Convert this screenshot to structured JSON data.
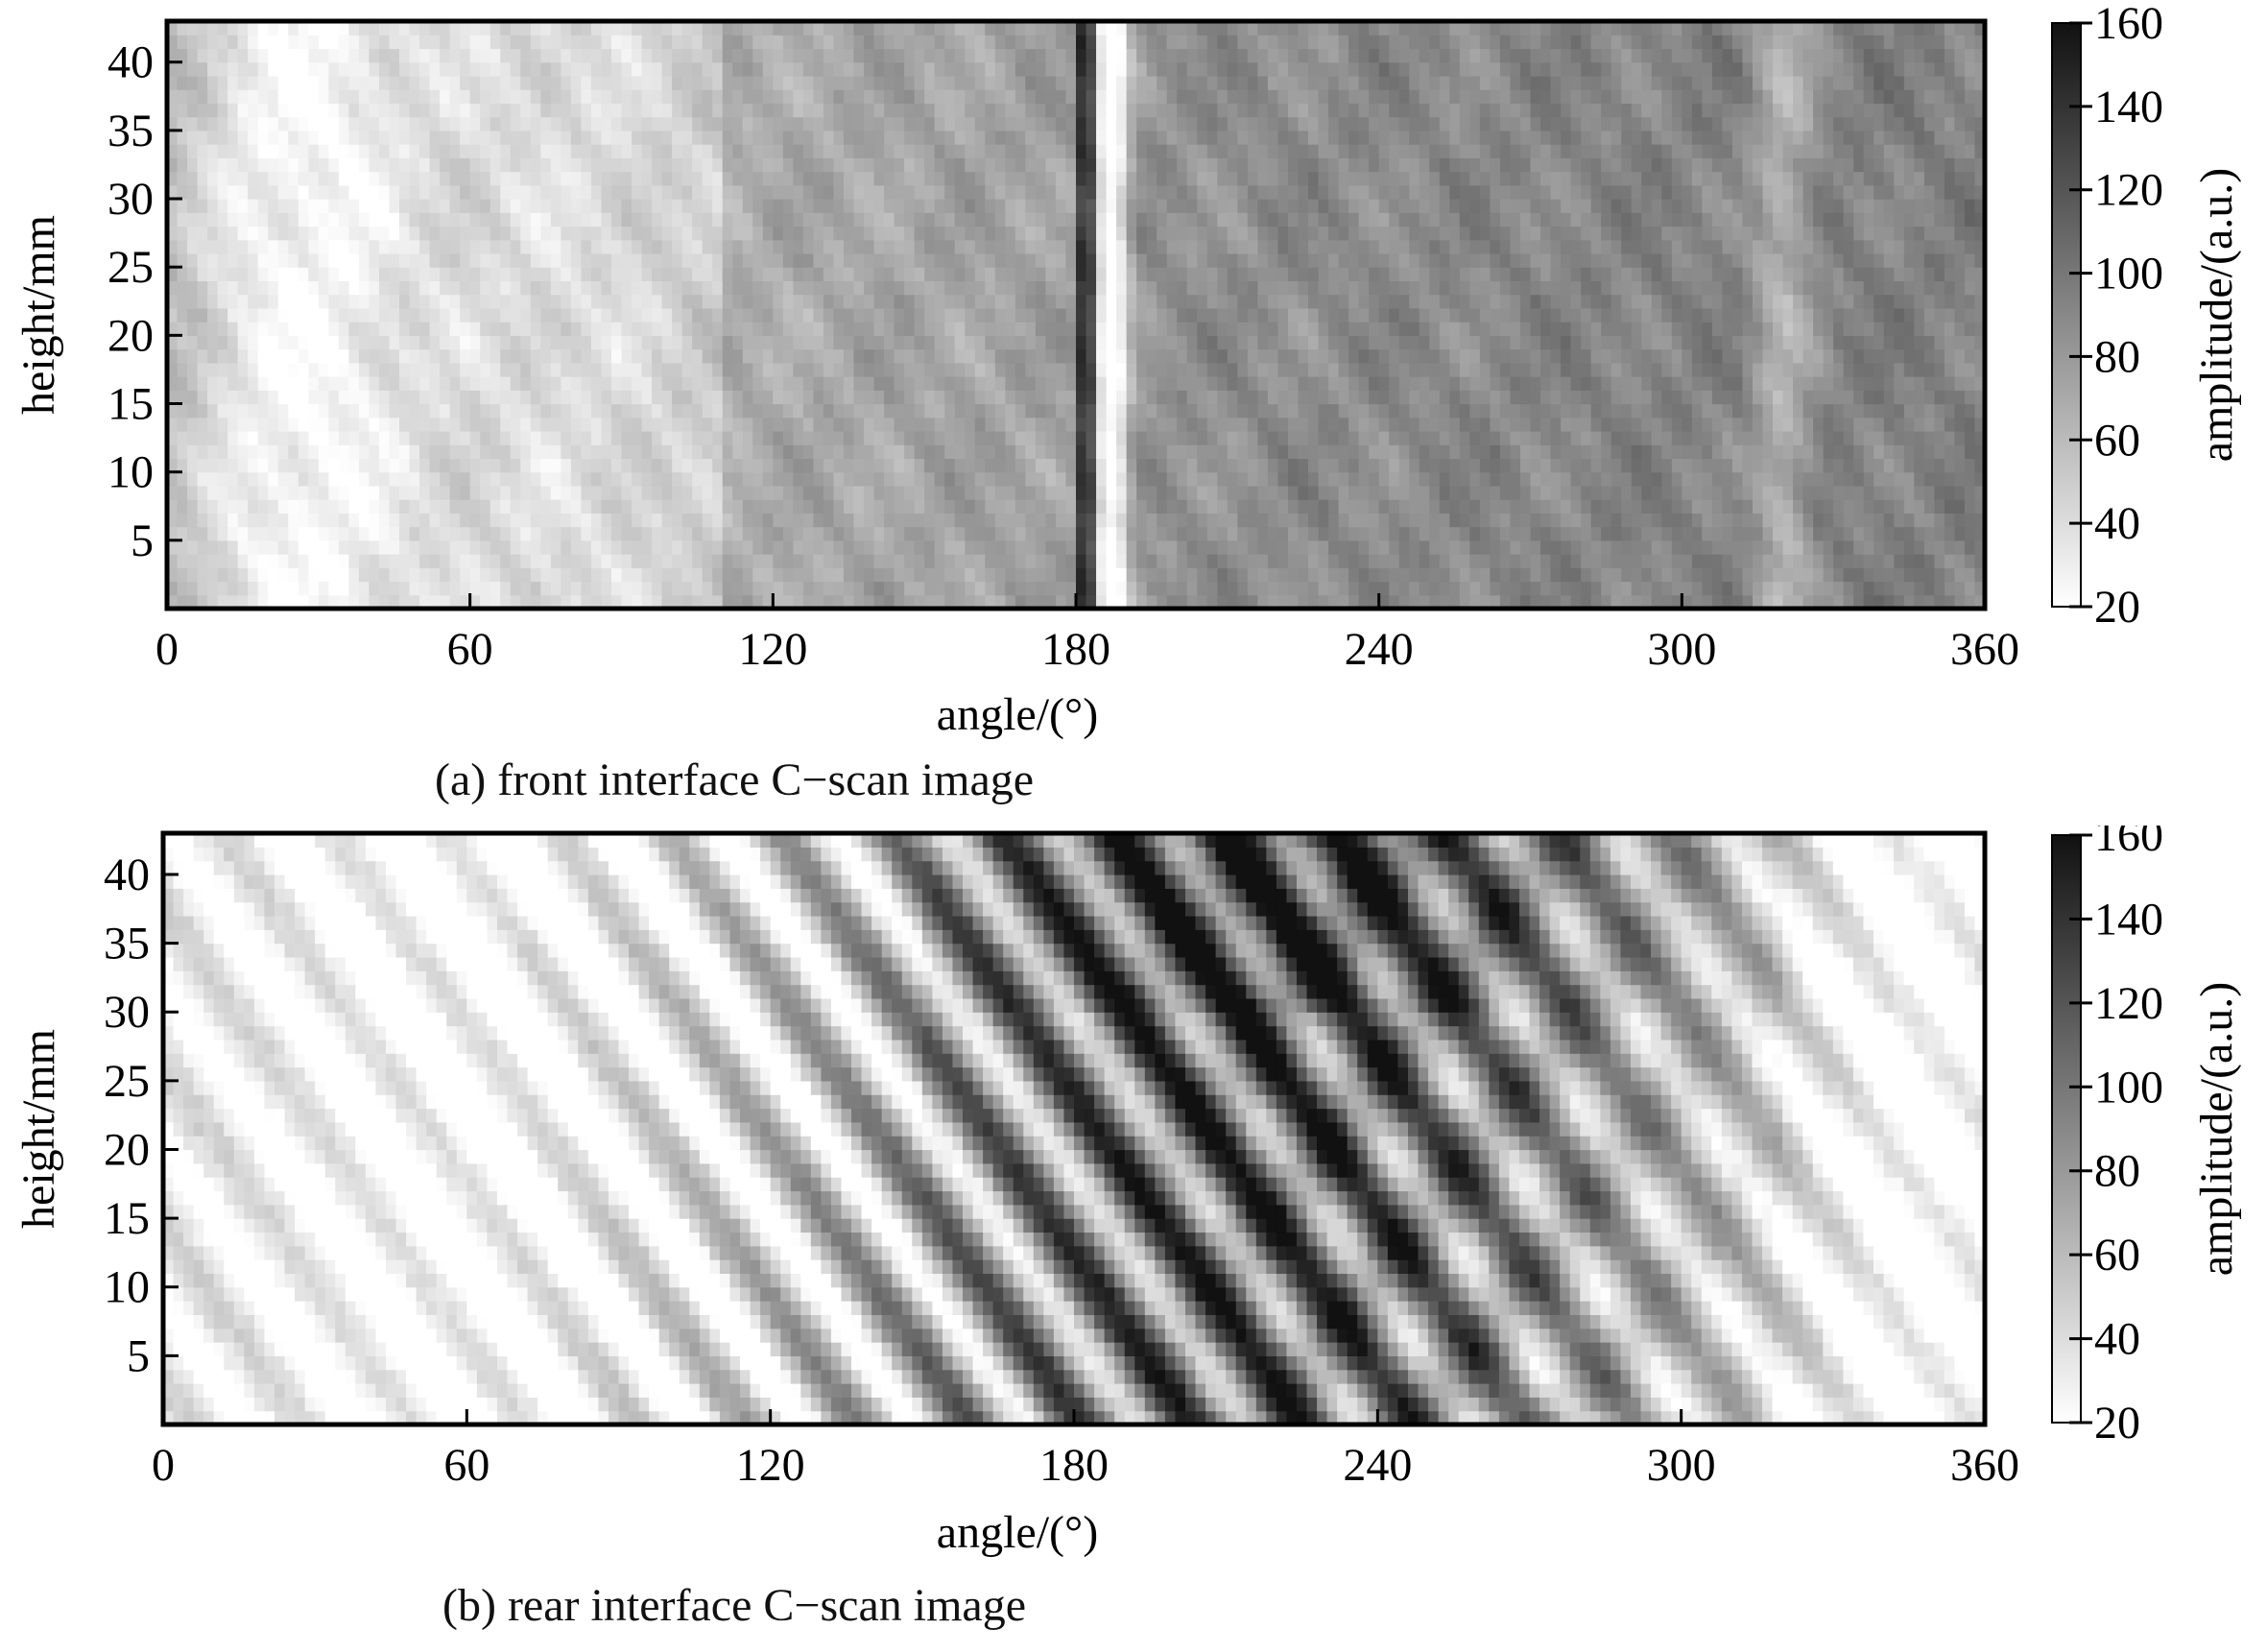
{
  "chart_data": [
    {
      "id": "a",
      "type": "heatmap",
      "caption": "(a) front interface C−scan image",
      "xlabel": "angle/(°)",
      "ylabel": "height/mm",
      "xlim": [
        0,
        360
      ],
      "ylim": [
        0,
        43
      ],
      "xticks": [
        "0",
        "60",
        "120",
        "180",
        "240",
        "300",
        "360"
      ],
      "yticks": [
        "5",
        "10",
        "15",
        "20",
        "25",
        "30",
        "35",
        "40"
      ],
      "colorbar": {
        "label": "amplitude/(a.u.)",
        "range": [
          20,
          160
        ],
        "ticks": [
          "20",
          "40",
          "60",
          "80",
          "100",
          "120",
          "140",
          "160"
        ],
        "colormap": [
          "#ffffff",
          "#111111"
        ]
      },
      "features": {
        "pattern": "vertical bands",
        "bright_region_deg": [
          0,
          110
        ],
        "dark_line_deg": 182,
        "bright_line_deg": 187,
        "bright_band_deg": 320
      }
    },
    {
      "id": "b",
      "type": "heatmap",
      "caption": "(b) rear interface C−scan image",
      "xlabel": "angle/(°)",
      "ylabel": "height/mm",
      "xlim": [
        0,
        360
      ],
      "ylim": [
        0,
        43
      ],
      "xticks": [
        "0",
        "60",
        "120",
        "180",
        "240",
        "300",
        "360"
      ],
      "yticks": [
        "5",
        "10",
        "15",
        "20",
        "25",
        "30",
        "35",
        "40"
      ],
      "colorbar": {
        "label": "amplitude/(a.u.)",
        "range": [
          20,
          160
        ],
        "ticks": [
          "20",
          "40",
          "60",
          "80",
          "100",
          "120",
          "140",
          "160"
        ],
        "colormap": [
          "#ffffff",
          "#111111"
        ]
      },
      "features": {
        "pattern": "diagonal stripes",
        "dark_region_deg": [
          140,
          310
        ]
      }
    }
  ]
}
